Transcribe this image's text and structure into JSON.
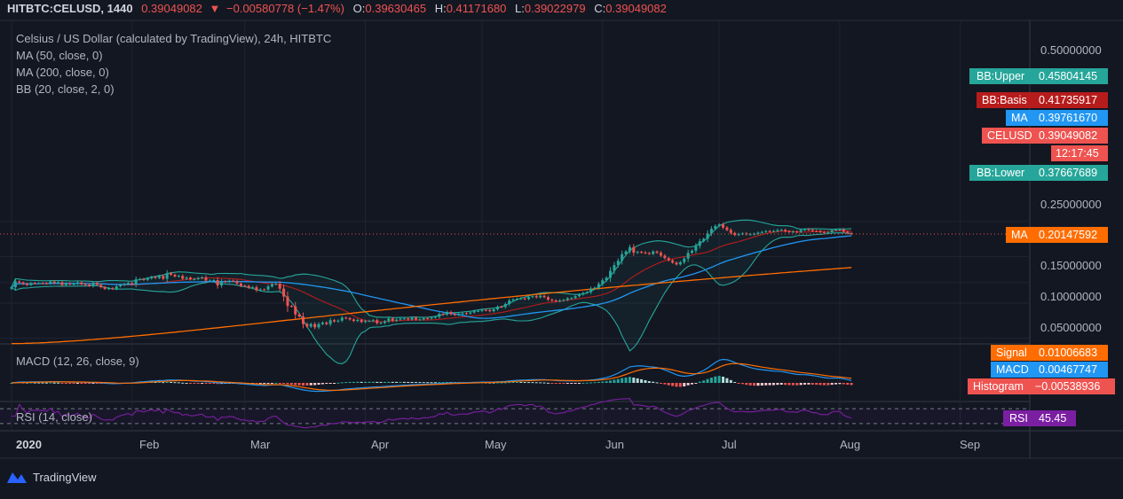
{
  "header": {
    "symbol_line": "HITBTC:CELUSD, 1440",
    "last_price": "0.39049082",
    "change_arrow": "▼",
    "change": "−0.00580778 (−1.47%)",
    "ohlc": [
      {
        "label": "O:",
        "value": "0.39630465"
      },
      {
        "label": "H:",
        "value": "0.41171680"
      },
      {
        "label": "L:",
        "value": "0.39022979"
      },
      {
        "label": "C:",
        "value": "0.39049082"
      }
    ]
  },
  "legend": {
    "title": "Celsius / US Dollar (calculated by TradingView), 24h, HITBTC",
    "ma50": "MA (50, close, 0)",
    "ma200": "MA (200, close, 0)",
    "bb": "BB (20, close, 2, 0)",
    "macd": "MACD (12, 26, close, 9)",
    "rsi": "RSI (14, close)"
  },
  "colors": {
    "background": "#131722",
    "up": "#26a69a",
    "down": "#ef5350",
    "ma50": "#2196f3",
    "ma200": "#ff6d00",
    "bb_basis": "#b71c1c",
    "bb_band": "#26a69a",
    "macd": "#2196f3",
    "signal": "#ff6d00",
    "rsi": "#7b1fa2",
    "text": "#d1d4dc",
    "grid": "#1f2433"
  },
  "price_axis": {
    "ticks": [
      "0.50000000",
      "0.25000000",
      "0.15000000",
      "0.10000000",
      "0.05000000"
    ]
  },
  "price_badges": [
    {
      "label": "BB:Upper",
      "value": "0.45804145",
      "color": "#26a69a"
    },
    {
      "label": "BB:Basis",
      "value": "0.41735917",
      "color": "#b71c1c"
    },
    {
      "label": "MA",
      "value": "0.39761670",
      "color": "#2196f3"
    },
    {
      "label": "CELUSD",
      "value": "0.39049082",
      "color": "#ef5350"
    },
    {
      "label": "",
      "value": "12:17:45",
      "color": "#ef5350"
    },
    {
      "label": "BB:Lower",
      "value": "0.37667689",
      "color": "#26a69a"
    },
    {
      "label": "MA",
      "value": "0.20147592",
      "color": "#ff6d00"
    }
  ],
  "macd_badges": [
    {
      "label": "Signal",
      "value": "0.01006683",
      "color": "#ff6d00"
    },
    {
      "label": "MACD",
      "value": "0.00467747",
      "color": "#2196f3"
    },
    {
      "label": "Histogram",
      "value": "−0.00538936",
      "color": "#ef5350"
    }
  ],
  "rsi_badge": {
    "label": "RSI",
    "value": "45.45",
    "color": "#7b1fa2"
  },
  "time_axis": {
    "labels": [
      "2020",
      "Feb",
      "Mar",
      "Apr",
      "May",
      "Jun",
      "Jul",
      "Aug",
      "Sep"
    ]
  },
  "footer": {
    "brand": "TradingView"
  },
  "chart_data": {
    "type": "candlestick",
    "interval": "24h",
    "yscale": "log",
    "ylim": [
      0.042,
      0.62
    ],
    "x_start": "2020-01-01",
    "close": [
      0.1368,
      0.1532,
      0.1498,
      0.1461,
      0.1429,
      0.1482,
      0.1478,
      0.1479,
      0.1478,
      0.1472,
      0.1529,
      0.148,
      0.1507,
      0.1425,
      0.1476,
      0.1447,
      0.1463,
      0.1502,
      0.1449,
      0.1439,
      0.1401,
      0.1491,
      0.1432,
      0.1369,
      0.1324,
      0.1336,
      0.1324,
      0.1391,
      0.1428,
      0.1456,
      0.1487,
      0.1445,
      0.1597,
      0.1603,
      0.158,
      0.1628,
      0.1673,
      0.1641,
      0.1706,
      0.1615,
      0.1802,
      0.1747,
      0.1692,
      0.1709,
      0.1617,
      0.1652,
      0.1597,
      0.1605,
      0.1637,
      0.1661,
      0.1558,
      0.156,
      0.1573,
      0.1415,
      0.1534,
      0.1516,
      0.1555,
      0.1541,
      0.1471,
      0.1405,
      0.1403,
      0.135,
      0.1366,
      0.1286,
      0.1307,
      0.1306,
      0.1388,
      0.1448,
      0.1465,
      0.1329,
      0.1138,
      0.0945,
      0.0938,
      0.0799,
      0.0767,
      0.0663,
      0.063,
      0.0662,
      0.062,
      0.0661,
      0.0681,
      0.0661,
      0.0714,
      0.0695,
      0.0708,
      0.075,
      0.0743,
      0.0724,
      0.0703,
      0.0718,
      0.0688,
      0.0703,
      0.0704,
      0.0714,
      0.0674,
      0.0676,
      0.0698,
      0.0739,
      0.0706,
      0.0722,
      0.0737,
      0.0739,
      0.0723,
      0.0749,
      0.0722,
      0.0725,
      0.0743,
      0.0738,
      0.0752,
      0.0762,
      0.0808,
      0.0799,
      0.084,
      0.0804,
      0.0793,
      0.0811,
      0.0818,
      0.0813,
      0.0831,
      0.0855,
      0.0857,
      0.0874,
      0.0869,
      0.0852,
      0.0884,
      0.093,
      0.0926,
      0.0982,
      0.1053,
      0.1076,
      0.109,
      0.1096,
      0.1082,
      0.1128,
      0.1145,
      0.1119,
      0.1154,
      0.1124,
      0.1069,
      0.1053,
      0.1038,
      0.1053,
      0.1062,
      0.1099,
      0.1104,
      0.1145,
      0.1184,
      0.1221,
      0.124,
      0.133,
      0.1353,
      0.1457,
      0.1567,
      0.1649,
      0.1888,
      0.2115,
      0.2307,
      0.2621,
      0.2764,
      0.3012,
      0.2701,
      0.2738,
      0.2715,
      0.2678,
      0.2634,
      0.276,
      0.2696,
      0.2548,
      0.2425,
      0.2322,
      0.2221,
      0.2142,
      0.2239,
      0.2402,
      0.2691,
      0.2809,
      0.3087,
      0.3382,
      0.354,
      0.3949,
      0.4327,
      0.4569,
      0.4704,
      0.4433,
      0.4224,
      0.3982,
      0.3824,
      0.3896,
      0.3941,
      0.3875,
      0.3884,
      0.3913,
      0.4001,
      0.4057,
      0.4127,
      0.4114,
      0.4133,
      0.4217,
      0.4232,
      0.4111,
      0.4069,
      0.4093,
      0.4061,
      0.4233,
      0.4272,
      0.4231,
      0.4141,
      0.4132,
      0.4045,
      0.4034,
      0.4034,
      0.4211,
      0.4248,
      0.4258,
      0.4074,
      0.3963,
      0.3905
    ],
    "series": [
      {
        "name": "CELUSD",
        "role": "price",
        "color": "#26a69a"
      },
      {
        "name": "MA",
        "role": "MA (50, close, 0)",
        "last": 0.3976167
      },
      {
        "name": "MA",
        "role": "MA (200, close, 0)",
        "last": 0.20147592
      },
      {
        "name": "BB:Upper",
        "last": 0.45804145
      },
      {
        "name": "BB:Basis",
        "last": 0.41735917
      },
      {
        "name": "BB:Lower",
        "last": 0.37667689
      },
      {
        "name": "MACD",
        "last": 0.00467747
      },
      {
        "name": "Signal",
        "last": 0.01006683
      },
      {
        "name": "Histogram",
        "last": -0.00538936
      },
      {
        "name": "RSI",
        "last": 45.45
      }
    ]
  }
}
